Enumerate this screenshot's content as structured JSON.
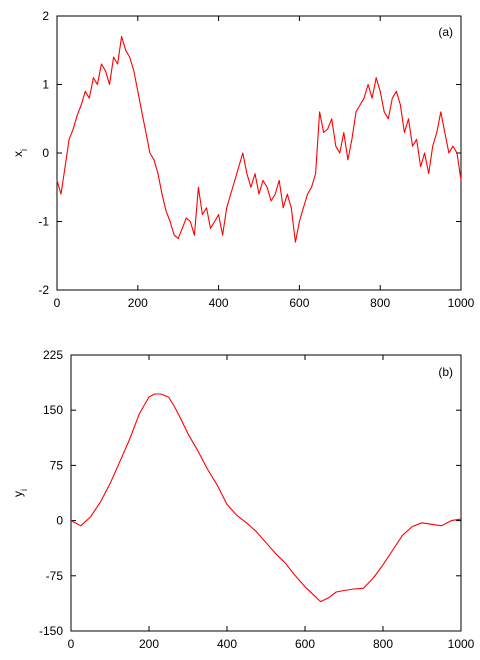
{
  "chart_data": [
    {
      "type": "line",
      "panel_label": "(a)",
      "xlabel": "",
      "ylabel": "x",
      "ylabel_subscript": "i",
      "xlim": [
        0,
        1000
      ],
      "ylim": [
        -2,
        2
      ],
      "xticks": [
        "0",
        "200",
        "400",
        "600",
        "800",
        "1000"
      ],
      "yticks": [
        "-2",
        "-1",
        "0",
        "1",
        "2"
      ],
      "color": "#ff0000",
      "grid": false,
      "series": [
        {
          "x": [
            0,
            10,
            20,
            30,
            40,
            50,
            60,
            70,
            80,
            90,
            100,
            110,
            120,
            130,
            140,
            150,
            160,
            170,
            180,
            190,
            200,
            210,
            220,
            230,
            240,
            250,
            260,
            270,
            280,
            290,
            300,
            310,
            320,
            330,
            340,
            350,
            360,
            370,
            380,
            390,
            400,
            410,
            420,
            430,
            440,
            450,
            460,
            470,
            480,
            490,
            500,
            510,
            520,
            530,
            540,
            550,
            560,
            570,
            580,
            590,
            600,
            610,
            620,
            630,
            640,
            650,
            660,
            670,
            680,
            690,
            700,
            710,
            720,
            730,
            740,
            750,
            760,
            770,
            780,
            790,
            800,
            810,
            820,
            830,
            840,
            850,
            860,
            870,
            880,
            890,
            900,
            910,
            920,
            930,
            940,
            950,
            960,
            970,
            980,
            990,
            1000
          ],
          "y": [
            -0.4,
            -0.6,
            -0.2,
            0.2,
            0.35,
            0.55,
            0.7,
            0.9,
            0.8,
            1.1,
            1.0,
            1.3,
            1.2,
            1.0,
            1.4,
            1.3,
            1.7,
            1.5,
            1.4,
            1.2,
            0.9,
            0.6,
            0.3,
            0.0,
            -0.1,
            -0.3,
            -0.6,
            -0.85,
            -1.0,
            -1.2,
            -1.25,
            -1.1,
            -0.95,
            -1.0,
            -1.2,
            -0.5,
            -0.9,
            -0.8,
            -1.1,
            -1.0,
            -0.9,
            -1.2,
            -0.8,
            -0.6,
            -0.4,
            -0.2,
            0.0,
            -0.3,
            -0.5,
            -0.3,
            -0.6,
            -0.4,
            -0.5,
            -0.7,
            -0.6,
            -0.4,
            -0.8,
            -0.6,
            -0.8,
            -1.3,
            -1.0,
            -0.8,
            -0.6,
            -0.5,
            -0.3,
            0.6,
            0.3,
            0.35,
            0.5,
            0.1,
            0.0,
            0.3,
            -0.1,
            0.2,
            0.6,
            0.7,
            0.8,
            1.0,
            0.8,
            1.1,
            0.9,
            0.6,
            0.5,
            0.8,
            0.9,
            0.7,
            0.3,
            0.5,
            0.1,
            0.2,
            -0.2,
            0.0,
            -0.3,
            0.1,
            0.3,
            0.6,
            0.3,
            0.0,
            0.1,
            0.0,
            -0.4
          ]
        }
      ]
    },
    {
      "type": "line",
      "panel_label": "(b)",
      "xlabel": "",
      "ylabel": "y",
      "ylabel_subscript": "i",
      "xlim": [
        0,
        1000
      ],
      "ylim": [
        -150,
        225
      ],
      "xticks": [
        "0",
        "200",
        "400",
        "600",
        "800",
        "1000"
      ],
      "yticks": [
        "-150",
        "-75",
        "0",
        "75",
        "150",
        "225"
      ],
      "color": "#ff0000",
      "grid": false,
      "series": [
        {
          "x": [
            0,
            25,
            50,
            75,
            100,
            125,
            150,
            175,
            200,
            215,
            230,
            250,
            265,
            280,
            300,
            325,
            350,
            375,
            400,
            425,
            450,
            475,
            500,
            525,
            550,
            575,
            600,
            620,
            640,
            660,
            680,
            700,
            725,
            750,
            775,
            800,
            825,
            850,
            875,
            900,
            925,
            950,
            975,
            1000
          ],
          "y": [
            0,
            -7,
            5,
            25,
            50,
            80,
            110,
            145,
            168,
            172,
            172,
            168,
            155,
            140,
            118,
            95,
            70,
            48,
            22,
            7,
            -3,
            -15,
            -30,
            -45,
            -58,
            -75,
            -90,
            -100,
            -110,
            -105,
            -97,
            -95,
            -93,
            -92,
            -78,
            -60,
            -40,
            -20,
            -8,
            -3,
            -5,
            -7,
            0,
            2
          ]
        }
      ]
    }
  ]
}
